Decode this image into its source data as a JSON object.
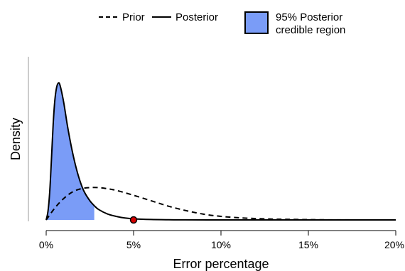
{
  "chart_data": {
    "type": "area",
    "xlabel": "Error percentage",
    "ylabel": "Density",
    "xlim": [
      0,
      20
    ],
    "ylim": [
      0,
      50
    ],
    "x_ticks": [
      0,
      5,
      10,
      15,
      20
    ],
    "x_tick_labels": [
      "0%",
      "5%",
      "10%",
      "15%",
      "20%"
    ],
    "grid": false,
    "legend": {
      "placement": "top",
      "entries": [
        {
          "label": "Prior",
          "style": "dashed"
        },
        {
          "label": "Posterior",
          "style": "solid"
        }
      ],
      "region_label_line1": "95% Posterior",
      "region_label_line2": "credible region"
    },
    "series": [
      {
        "name": "Prior",
        "style": "dashed",
        "x": [
          0,
          0.5,
          1,
          1.5,
          2,
          2.5,
          3,
          3.5,
          4,
          5,
          6,
          7,
          8,
          9,
          10,
          11,
          12,
          13,
          14,
          16,
          18,
          20
        ],
        "y": [
          0,
          4.4,
          7.8,
          10.2,
          11.4,
          11.8,
          11.8,
          11.4,
          10.8,
          9.0,
          7.0,
          5.0,
          3.4,
          2.1,
          1.3,
          0.8,
          0.5,
          0.3,
          0.2,
          0.05,
          0.01,
          0
        ]
      },
      {
        "name": "Posterior",
        "style": "solid",
        "x": [
          0,
          0.1,
          0.2,
          0.3,
          0.4,
          0.5,
          0.6,
          0.7,
          0.8,
          1.0,
          1.2,
          1.4,
          1.6,
          1.8,
          2.0,
          2.2,
          2.5,
          2.75,
          3.0,
          3.5,
          4.0,
          4.5,
          5.0,
          6.0,
          7.0,
          8.0,
          10.0,
          12.0,
          15.0,
          20.0
        ],
        "y": [
          0,
          3,
          10,
          22,
          35,
          44,
          48.5,
          50,
          49,
          43,
          35,
          28,
          22,
          17,
          13,
          10,
          7,
          5.2,
          3.8,
          2.2,
          1.3,
          0.7,
          0.4,
          0.15,
          0.06,
          0.03,
          0.01,
          0,
          0,
          0
        ]
      }
    ],
    "credible_region": {
      "from": 0,
      "to": 2.75,
      "color": "#7a9cf7"
    },
    "observed_point": {
      "x": 5,
      "y": 0,
      "color": "#d40000"
    }
  }
}
